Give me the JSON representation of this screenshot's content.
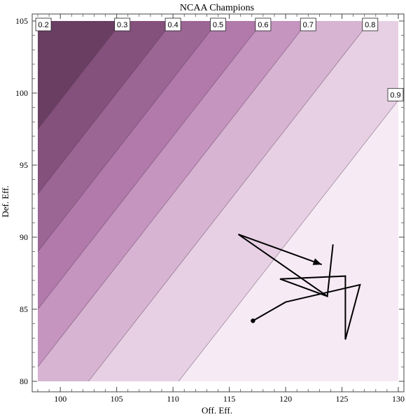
{
  "chart_data": {
    "type": "contour",
    "title": "NCAA Champions",
    "xlabel": "Off. Eff.",
    "ylabel": "Def. Eff.",
    "xlim": [
      98,
      130
    ],
    "ylim": [
      80,
      105
    ],
    "x_ticks": [
      100,
      105,
      110,
      115,
      120,
      125,
      130
    ],
    "y_ticks": [
      80,
      85,
      90,
      95,
      100,
      105
    ],
    "contour_levels": [
      0.2,
      0.3,
      0.4,
      0.5,
      0.6,
      0.7,
      0.8,
      0.9
    ],
    "contour_label_text": [
      "0.2",
      "0.3",
      "0.4",
      "0.5",
      "0.6",
      "0.7",
      "0.8",
      "0.9"
    ],
    "band_colors": [
      "#1c1c1c",
      "#6a3e63",
      "#84507c",
      "#9b6694",
      "#b17aaa",
      "#c594bf",
      "#d7b4d2",
      "#e7d0e4",
      "#f6eaf4"
    ],
    "path": {
      "points": [
        [
          115.8,
          90.2
        ],
        [
          123.2,
          88.1
        ],
        [
          115.8,
          90.2
        ],
        [
          123.7,
          85.9
        ],
        [
          124.2,
          89.5
        ],
        [
          123.7,
          85.9
        ],
        [
          119.5,
          87.1
        ],
        [
          125.3,
          87.3
        ],
        [
          125.3,
          82.9
        ],
        [
          126.6,
          86.7
        ],
        [
          120,
          85.5
        ],
        [
          117.1,
          84.2
        ]
      ],
      "start_marker": [
        117.1,
        84.2
      ],
      "arrow_end": [
        123.2,
        88.1
      ]
    }
  }
}
